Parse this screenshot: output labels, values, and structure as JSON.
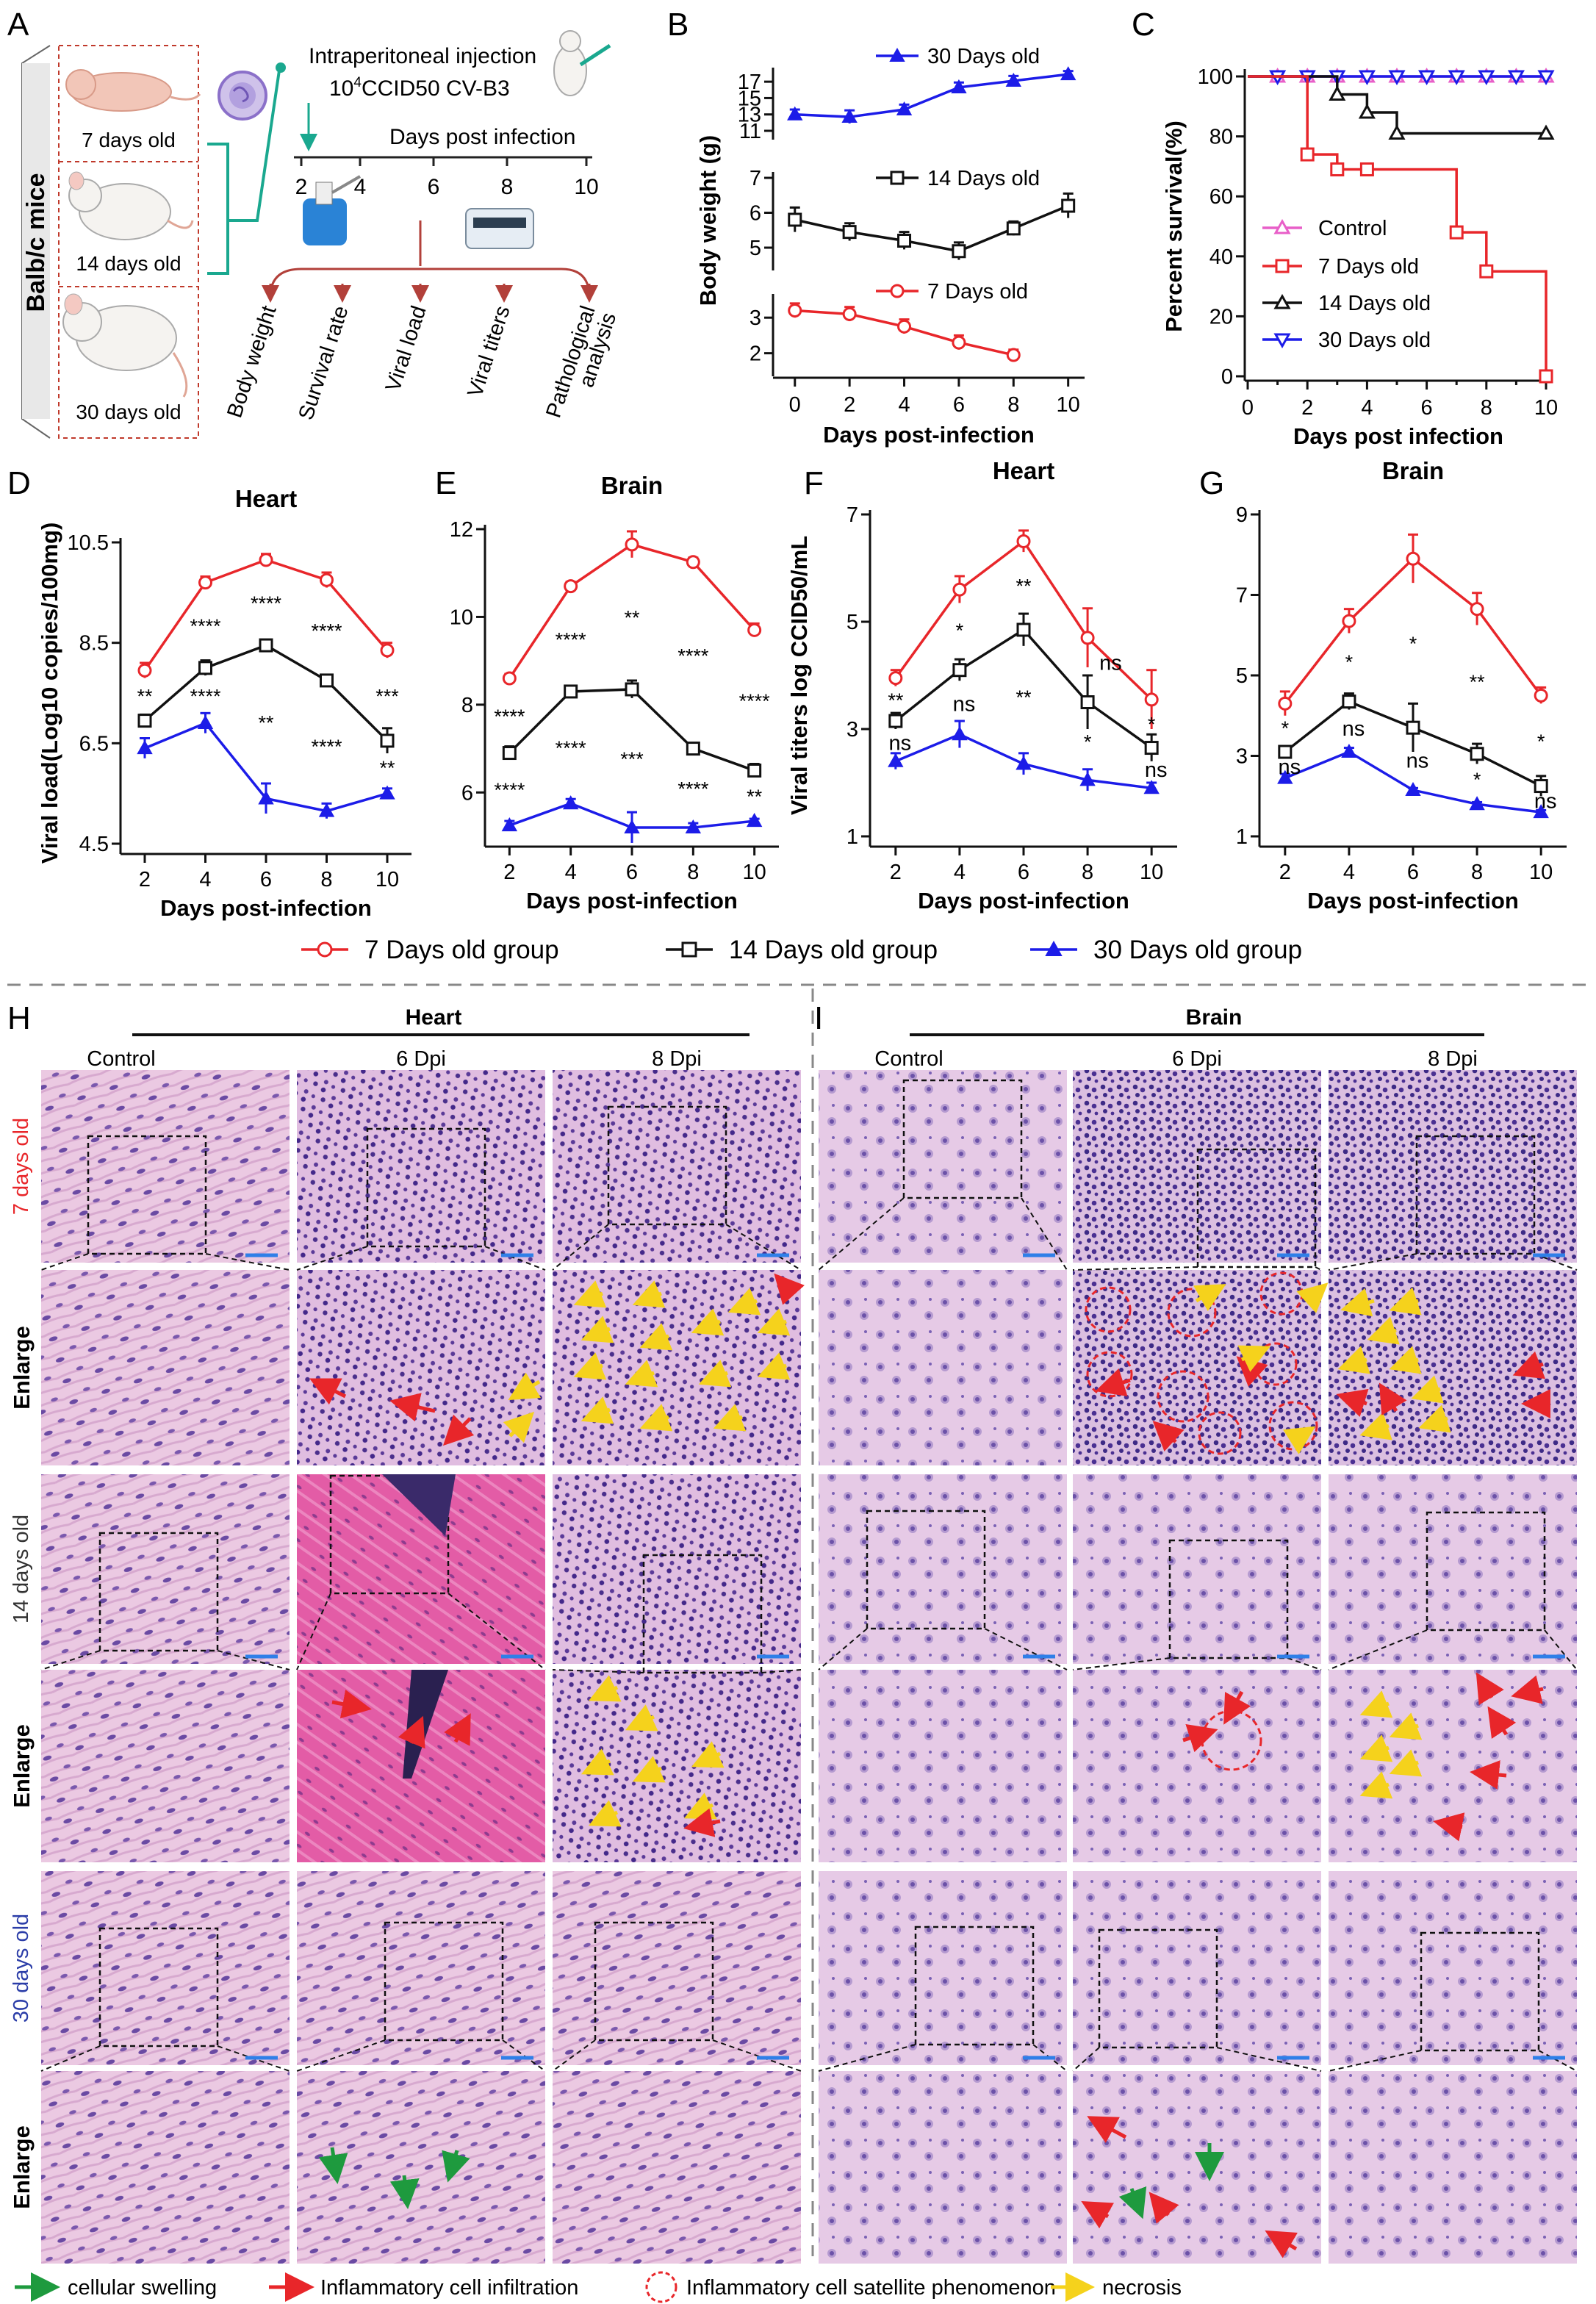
{
  "panel_letters": {
    "A": "A",
    "B": "B",
    "C": "C",
    "D": "D",
    "E": "E",
    "F": "F",
    "G": "G",
    "H": "H",
    "I": "I"
  },
  "colors": {
    "red": "#e8262a",
    "black": "#111111",
    "blue": "#1c1ce8",
    "pink": "#e85fc8",
    "teal": "#1aa88f",
    "he_pink": "#e6c2dc",
    "he_purple": "#5a3f96",
    "scale": "#2f7fe8"
  },
  "panel_a": {
    "side_label": "Balb/c mice",
    "mice": [
      "7 days old",
      "14 days old",
      "30 days old"
    ],
    "injection": "Intraperitoneal injection",
    "dose_prefix": "10",
    "dose_sup": "4",
    "dose_suffix": "CCID50 CV-B3",
    "timeline_title": "Days post infection",
    "timeline_ticks": [
      "2",
      "4",
      "6",
      "8",
      "10"
    ],
    "outcomes": [
      "Body weight",
      "Survival rate",
      "Viral load",
      "Viral titers",
      "Pathological analysis"
    ]
  },
  "axis_titles": {
    "days_post_infection": "Days post-infection",
    "days_post_infection_c": "Days post infection"
  },
  "legend_main": [
    "7  Days old group",
    "14 Days old group",
    "30 Days old group"
  ],
  "bottom_legend": [
    "cellular swelling",
    "Inflammatory cell infiltration",
    "Inflammatory cell satellite phenomenon",
    "necrosis"
  ],
  "histology": {
    "heart_title": "Heart",
    "brain_title": "Brain",
    "columns": [
      "Control",
      "6 Dpi",
      "8 Dpi"
    ],
    "rows": [
      "7 days old",
      "14 days old",
      "30 days old"
    ],
    "enlarge": "Enlarge"
  },
  "chart_data": [
    {
      "id": "B",
      "type": "line",
      "title": "",
      "xlabel": "Days post-infection",
      "ylabel": "Body weight (g)",
      "x": [
        0,
        2,
        4,
        6,
        8,
        10
      ],
      "legend": [
        "30 Days old",
        "14 Days old",
        "7  Days old"
      ],
      "segments": [
        {
          "name": "30 Days old",
          "ylim": [
            11,
            18
          ],
          "ticks": [
            "11",
            "13",
            "15",
            "17"
          ],
          "tick_values": [
            11,
            13,
            15,
            17
          ],
          "values": [
            13.0,
            12.7,
            13.6,
            16.3,
            17.1,
            17.9
          ],
          "err": [
            0.6,
            0.8,
            0.6,
            0.6,
            0.6,
            0.4
          ]
        },
        {
          "name": "14 Days old",
          "ylim": [
            4.6,
            7
          ],
          "ticks": [
            "5",
            "6",
            "7"
          ],
          "tick_values": [
            5,
            6,
            7
          ],
          "values": [
            5.8,
            5.45,
            5.2,
            4.9,
            5.55,
            6.2
          ],
          "err": [
            0.35,
            0.25,
            0.25,
            0.25,
            0.2,
            0.35
          ]
        },
        {
          "name": "7  Days old",
          "ylim": [
            1.6,
            3.5
          ],
          "ticks": [
            "2",
            "3"
          ],
          "tick_values": [
            2,
            3
          ],
          "values": [
            3.2,
            3.1,
            2.75,
            2.3,
            1.95,
            null
          ],
          "err": [
            0.2,
            0.2,
            0.2,
            0.2,
            0.15,
            0
          ]
        }
      ]
    },
    {
      "id": "C",
      "type": "line",
      "title": "",
      "xlabel": "Days post infection",
      "ylabel": "Percent survival(%)",
      "xlim": [
        0,
        10
      ],
      "ylim": [
        0,
        100
      ],
      "xticks": [
        "0",
        "2",
        "4",
        "6",
        "8",
        "10"
      ],
      "yticks": [
        "0",
        "20",
        "40",
        "60",
        "80",
        "100"
      ],
      "legend": [
        "Control",
        "7 Days old",
        "14 Days old",
        "30 Days old"
      ],
      "series": [
        {
          "name": "Control",
          "steps": [
            [
              0,
              100
            ],
            [
              10,
              100
            ]
          ],
          "markers": [
            [
              1,
              100
            ],
            [
              2,
              100
            ],
            [
              3,
              100
            ],
            [
              4,
              100
            ],
            [
              5,
              100
            ],
            [
              6,
              100
            ],
            [
              7,
              100
            ],
            [
              8,
              100
            ],
            [
              9,
              100
            ],
            [
              10,
              100
            ]
          ]
        },
        {
          "name": "30 Days old",
          "steps": [
            [
              0,
              100
            ],
            [
              10,
              100
            ]
          ],
          "markers": [
            [
              1,
              100
            ],
            [
              2,
              100
            ],
            [
              3,
              100
            ],
            [
              4,
              100
            ],
            [
              5,
              100
            ],
            [
              6,
              100
            ],
            [
              7,
              100
            ],
            [
              8,
              100
            ],
            [
              9,
              100
            ],
            [
              10,
              100
            ]
          ]
        },
        {
          "name": "14 Days old",
          "steps": [
            [
              0,
              100
            ],
            [
              3,
              100
            ],
            [
              3,
              94
            ],
            [
              4,
              94
            ],
            [
              4,
              88
            ],
            [
              5,
              88
            ],
            [
              5,
              81
            ],
            [
              10,
              81
            ]
          ],
          "markers": [
            [
              3,
              94
            ],
            [
              4,
              88
            ],
            [
              5,
              81
            ],
            [
              10,
              81
            ]
          ]
        },
        {
          "name": "7 Days old",
          "steps": [
            [
              0,
              100
            ],
            [
              2,
              100
            ],
            [
              2,
              74
            ],
            [
              3,
              74
            ],
            [
              3,
              69
            ],
            [
              7,
              69
            ],
            [
              7,
              48
            ],
            [
              8,
              48
            ],
            [
              8,
              35
            ],
            [
              10,
              35
            ],
            [
              10,
              0
            ]
          ],
          "markers": [
            [
              2,
              74
            ],
            [
              3,
              69
            ],
            [
              4,
              69
            ],
            [
              7,
              48
            ],
            [
              8,
              35
            ],
            [
              10,
              0
            ]
          ]
        }
      ]
    },
    {
      "id": "D",
      "type": "line",
      "title": "Heart",
      "xlabel": "Days post-infection",
      "ylabel": "Viral load(Log10 copies/100mg)",
      "x": [
        2,
        4,
        6,
        8,
        10
      ],
      "ylim": [
        4.5,
        10.5
      ],
      "yticks": [
        "4.5",
        "6.5",
        "8.5",
        "10.5"
      ],
      "ytick_values": [
        4.5,
        6.5,
        8.5,
        10.5
      ],
      "series": [
        {
          "name": "7 Days old group",
          "values": [
            7.95,
            9.7,
            10.15,
            9.75,
            8.35
          ],
          "err": [
            0.15,
            0.12,
            0.12,
            0.15,
            0.15
          ]
        },
        {
          "name": "14 Days old group",
          "values": [
            6.95,
            8.0,
            8.45,
            7.75,
            6.55
          ],
          "err": [
            0.12,
            0.15,
            0.1,
            0.1,
            0.25
          ]
        },
        {
          "name": "30 Days old group",
          "values": [
            6.4,
            6.9,
            5.4,
            5.15,
            5.5
          ],
          "err": [
            0.2,
            0.2,
            0.3,
            0.15,
            0.1
          ]
        }
      ],
      "sig_upper": [
        "**",
        "****",
        "****",
        "****",
        "***"
      ],
      "sig_lower": [
        "",
        "****",
        "**",
        "****",
        "**"
      ]
    },
    {
      "id": "E",
      "type": "line",
      "title": "Brain",
      "xlabel": "Days post-infection",
      "ylabel": "",
      "x": [
        2,
        4,
        6,
        8,
        10
      ],
      "ylim": [
        5,
        12
      ],
      "yticks": [
        "6",
        "8",
        "10",
        "12"
      ],
      "ytick_values": [
        6,
        8,
        10,
        12
      ],
      "series": [
        {
          "name": "7 Days old group",
          "values": [
            8.6,
            10.7,
            11.65,
            11.25,
            9.7
          ],
          "err": [
            0.1,
            0.1,
            0.3,
            0.1,
            0.15
          ]
        },
        {
          "name": "14 Days old group",
          "values": [
            6.9,
            8.3,
            8.35,
            7.0,
            6.5
          ],
          "err": [
            0.15,
            0.1,
            0.2,
            0.1,
            0.15
          ]
        },
        {
          "name": "30 Days old group",
          "values": [
            5.25,
            5.75,
            5.2,
            5.2,
            5.35
          ],
          "err": [
            0.1,
            0.1,
            0.35,
            0.1,
            0.05
          ]
        }
      ],
      "sig_upper": [
        "****",
        "****",
        "**",
        "****",
        "****"
      ],
      "sig_lower": [
        "****",
        "****",
        "***",
        "****",
        "**"
      ]
    },
    {
      "id": "F",
      "type": "line",
      "title": "Heart",
      "xlabel": "Days post-infection",
      "ylabel": "Viral titers log CCID50/mL",
      "x": [
        2,
        4,
        6,
        8,
        10
      ],
      "ylim": [
        1,
        7
      ],
      "yticks": [
        "1",
        "3",
        "5",
        "7"
      ],
      "ytick_values": [
        1,
        3,
        5,
        7
      ],
      "series": [
        {
          "name": "7 Days old group",
          "values": [
            3.95,
            5.6,
            6.5,
            4.7,
            3.55
          ],
          "err": [
            0.15,
            0.25,
            0.2,
            0.55,
            0.55
          ]
        },
        {
          "name": "14 Days old group",
          "values": [
            3.15,
            4.1,
            4.85,
            3.5,
            2.65
          ],
          "err": [
            0.15,
            0.2,
            0.3,
            0.5,
            0.25
          ]
        },
        {
          "name": "30 Days old group",
          "values": [
            2.4,
            2.9,
            2.35,
            2.05,
            1.9
          ],
          "err": [
            0.15,
            0.25,
            0.2,
            0.2,
            0.1
          ]
        }
      ],
      "sig_upper": [
        "**",
        "*",
        "**",
        "ns",
        "*"
      ],
      "sig_lower": [
        "ns",
        "ns",
        "**",
        "*",
        "ns"
      ]
    },
    {
      "id": "G",
      "type": "line",
      "title": "Brain",
      "xlabel": "Days post-infection",
      "ylabel": "",
      "x": [
        2,
        4,
        6,
        8,
        10
      ],
      "ylim": [
        1,
        9
      ],
      "yticks": [
        "1",
        "3",
        "5",
        "7",
        "9"
      ],
      "ytick_values": [
        1,
        3,
        5,
        7,
        9
      ],
      "series": [
        {
          "name": "7 Days old group",
          "values": [
            4.3,
            6.35,
            7.9,
            6.65,
            4.5
          ],
          "err": [
            0.3,
            0.3,
            0.6,
            0.4,
            0.2
          ]
        },
        {
          "name": "14 Days old group",
          "values": [
            3.1,
            4.35,
            3.7,
            3.05,
            2.25
          ],
          "err": [
            0.1,
            0.2,
            0.6,
            0.25,
            0.25
          ]
        },
        {
          "name": "30 Days old group",
          "values": [
            2.45,
            3.1,
            2.15,
            1.8,
            1.6
          ],
          "err": [
            0.1,
            0.1,
            0.05,
            0.05,
            0.05
          ]
        }
      ],
      "sig_upper": [
        "*",
        "*",
        "*",
        "**",
        "*"
      ],
      "sig_lower": [
        "ns",
        "ns",
        "ns",
        "*",
        "ns"
      ]
    }
  ]
}
